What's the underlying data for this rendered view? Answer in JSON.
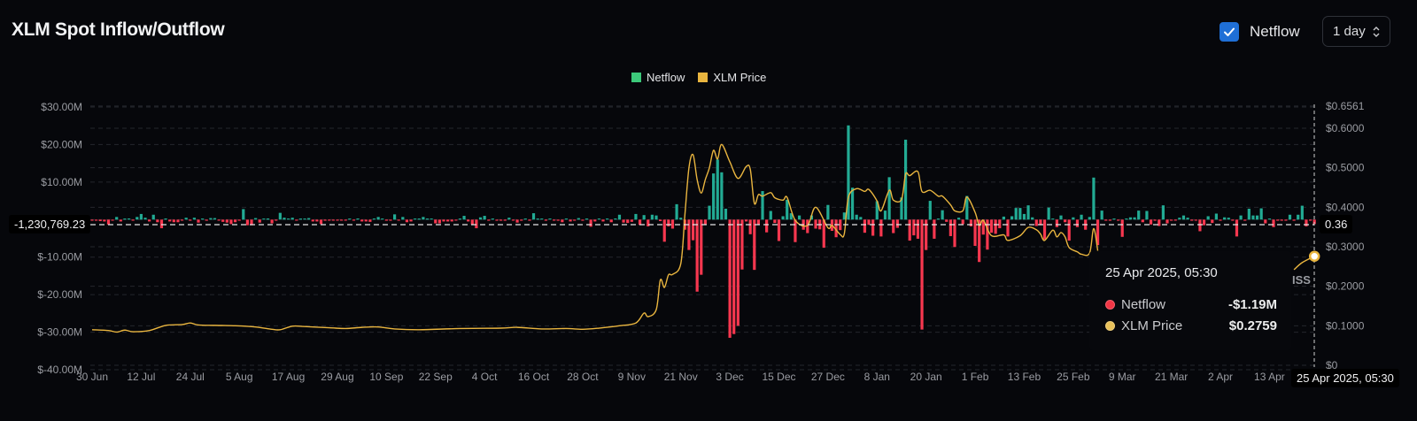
{
  "header": {
    "title": "XLM Spot Inflow/Outflow",
    "netflow_toggle_label": "Netflow",
    "netflow_checked": true,
    "interval_select": "1 day"
  },
  "legend": [
    {
      "label": "Netflow",
      "color": "#3cc97a"
    },
    {
      "label": "XLM Price",
      "color": "#e9b53f"
    }
  ],
  "crosshair": {
    "left_value": "-1,230,769.23",
    "right_value": "0.36",
    "x_label": "25 Apr 2025, 05:30"
  },
  "tooltip": {
    "date": "25 Apr 2025, 05:30",
    "rows": [
      {
        "name": "Netflow",
        "value": "-$1.19M",
        "color": "#f23645"
      },
      {
        "name": "XLM Price",
        "value": "$0.2759",
        "color": "#e9c15a"
      }
    ]
  },
  "partial_label": "ISS",
  "colors": {
    "inflow": "#22ab94",
    "outflow": "#f7374f",
    "price": "#e9b53f",
    "background": "#06070b"
  },
  "chart_data": {
    "type": "bar+line",
    "start_date": "2024-06-30",
    "end_date": "2025-04-25",
    "interval": "1 day",
    "left_axis": {
      "unit": "USD",
      "ylim": [
        -40,
        30
      ],
      "ticks": [
        "$30.00M",
        "$20.00M",
        "$10.00M",
        "$-10.00M",
        "$-20.00M",
        "$-30.00M",
        "$-40.00M"
      ],
      "tick_values": [
        30,
        20,
        10,
        -10,
        -20,
        -30,
        -40
      ]
    },
    "right_axis": {
      "ylim": [
        0,
        0.6561
      ],
      "ticks": [
        "$0.6561",
        "$0.6000",
        "$0.5000",
        "$0.4000",
        "$0.3000",
        "$0.2000",
        "$0.1000",
        "$0"
      ],
      "tick_values": [
        0.6561,
        0.6,
        0.5,
        0.4,
        0.3,
        0.2,
        0.1,
        0
      ]
    },
    "x_ticks": [
      "30 Jun",
      "12 Jul",
      "24 Jul",
      "5 Aug",
      "17 Aug",
      "29 Aug",
      "10 Sep",
      "22 Sep",
      "4 Oct",
      "16 Oct",
      "28 Oct",
      "9 Nov",
      "21 Nov",
      "3 Dec",
      "15 Dec",
      "27 Dec",
      "8 Jan",
      "20 Jan",
      "1 Feb",
      "13 Feb",
      "25 Feb",
      "9 Mar",
      "21 Mar",
      "2 Apr",
      "13 Apr"
    ],
    "x_tick_step_days": 12,
    "grid": true,
    "legend_position": "top-center",
    "series": [
      {
        "name": "Netflow",
        "type": "bar",
        "unit": "$M",
        "values": [
          -0.3,
          -0.3,
          -0.4,
          -0.5,
          -1.3,
          -0.2,
          0.7,
          -0.5,
          0.1,
          0.3,
          -0.2,
          0.7,
          1.5,
          0.5,
          -0.5,
          1.3,
          -0.7,
          -2.3,
          0.3,
          -0.5,
          -0.7,
          -0.7,
          -0.2,
          0.5,
          -0.3,
          0.5,
          -0.8,
          0.1,
          -0.3,
          0.4,
          0.4,
          -0.2,
          -0.6,
          -0.8,
          -1.2,
          -0.7,
          -0.3,
          2.8,
          -1.5,
          -1.5,
          0.4,
          -0.8,
          0.1,
          0.3,
          -1.0,
          -0.3,
          1.8,
          0.5,
          0.1,
          0.5,
          -0.2,
          0.2,
          0.2,
          0.4,
          -0.5,
          -0.5,
          -1.2,
          -0.3,
          -0.2,
          -0.2,
          -0.2,
          -0.2,
          -0.2,
          0.2,
          -0.2,
          0.3,
          -0.5,
          -0.5,
          -0.6,
          0.1,
          0.7,
          0.1,
          -0.3,
          -0.3,
          1.4,
          -0.2,
          0.7,
          -0.7,
          -0.5,
          0.2,
          0.2,
          0.7,
          0.2,
          0.2,
          -1.0,
          -1.0,
          -0.5,
          -0.5,
          -0.5,
          -0.2,
          0.1,
          1.0,
          -0.5,
          -1.3,
          -2.3,
          0.6,
          1.0,
          -0.3,
          0.1,
          -0.3,
          -0.3,
          -0.3,
          0.5,
          -0.2,
          -0.8,
          -0.3,
          0.2,
          -0.3,
          1.7,
          0.1,
          0.1,
          -0.3,
          0.1,
          -0.2,
          -0.3,
          -0.7,
          0.2,
          -0.5,
          -0.3,
          0.4,
          -0.3,
          0.2,
          -1.9,
          -0.5,
          0.1,
          -0.5,
          0.1,
          -0.7,
          0.3,
          1.3,
          -0.8,
          -0.9,
          -0.6,
          1.5,
          -1.4,
          1.2,
          -1.8,
          1.3,
          1.1,
          -0.4,
          -5.9,
          -1.8,
          -2.4,
          4.1,
          0.5,
          -2.7,
          -8.1,
          -5.5,
          -19.2,
          -14.7,
          -1.4,
          3.7,
          12.3,
          16,
          12.6,
          2.9,
          -31.5,
          -30.5,
          -28.3,
          -13.3,
          -0.5,
          -3.9,
          -13.4,
          -1.3,
          7.6,
          -3.4,
          2.3,
          -0.9,
          -5.7,
          0.9,
          5.3,
          1.7,
          -6,
          1.1,
          -2.7,
          -3.6,
          1.1,
          -2.4,
          -2.6,
          -7.5,
          3.9,
          -3,
          -4.7,
          -2.8,
          1.9,
          25.1,
          8.5,
          1.3,
          0.7,
          -3.5,
          -1.4,
          -4.3,
          4.9,
          -4.5,
          2.4,
          11.3,
          -3.6,
          -2.2,
          5.9,
          21.3,
          -5.6,
          -4.2,
          -5.1,
          -29.3,
          -8.1,
          5,
          -5.1,
          0.2,
          2.5,
          -0.6,
          -4.4,
          -7.3,
          0.5,
          -1.2,
          6.3,
          -1.8,
          -7,
          -11.3,
          -4,
          -8,
          -3.5,
          -3.8,
          -2.3,
          0.8,
          -4.5,
          0.9,
          3.1,
          3.1,
          1.5,
          3.8,
          0.6,
          -1.7,
          -1.5,
          -5.3,
          3.2,
          0.2,
          -2,
          1.1,
          -0.7,
          -5.6,
          0.6,
          -2,
          1.3,
          -2.7,
          0.7,
          11.2,
          -6.8,
          2.4,
          -0.3,
          -0.3,
          0.2,
          -0.3,
          -4.6,
          0.2,
          0.6,
          0.6,
          2.4,
          -0.7,
          2.3,
          -1.3,
          -0.3,
          -1.7,
          3.8,
          -1,
          -0.3,
          -0.2,
          0.5,
          1.1,
          0.5,
          -0.3,
          -0.2,
          -3.1,
          -1.5,
          0.9,
          -0.9,
          1.6,
          -0.3,
          0.6,
          0.5,
          -0.3,
          -4.5,
          1.1,
          -0.3,
          2.9,
          1.1,
          1.1,
          3,
          -1,
          0.2,
          -2,
          -0.3,
          -0.3,
          -0.3,
          1.3,
          -0.3,
          1.3,
          3.7,
          -1.8,
          -0.3,
          -1.19
        ]
      },
      {
        "name": "XLM Price",
        "type": "line",
        "unit": "USD",
        "segments": [
          [
            [
              "2024-06-30",
              0.09
            ],
            [
              "2024-07-04",
              0.088
            ],
            [
              "2024-07-06",
              0.084
            ],
            [
              "2024-07-08",
              0.089
            ],
            [
              "2024-07-10",
              0.085
            ],
            [
              "2024-07-14",
              0.088
            ],
            [
              "2024-07-18",
              0.101
            ],
            [
              "2024-07-22",
              0.103
            ],
            [
              "2024-07-24",
              0.107
            ],
            [
              "2024-07-26",
              0.102
            ],
            [
              "2024-07-30",
              0.101
            ],
            [
              "2024-08-04",
              0.1
            ],
            [
              "2024-08-09",
              0.097
            ],
            [
              "2024-08-13",
              0.091
            ],
            [
              "2024-08-15",
              0.09
            ],
            [
              "2024-08-18",
              0.099
            ],
            [
              "2024-08-21",
              0.098
            ],
            [
              "2024-08-27",
              0.095
            ],
            [
              "2024-08-31",
              0.093
            ],
            [
              "2024-09-04",
              0.096
            ],
            [
              "2024-09-08",
              0.097
            ],
            [
              "2024-09-12",
              0.092
            ],
            [
              "2024-09-18",
              0.09
            ],
            [
              "2024-09-28",
              0.093
            ],
            [
              "2024-10-08",
              0.094
            ],
            [
              "2024-10-12",
              0.096
            ],
            [
              "2024-10-18",
              0.092
            ],
            [
              "2024-10-24",
              0.093
            ],
            [
              "2024-10-28",
              0.091
            ],
            [
              "2024-11-01",
              0.094
            ],
            [
              "2024-11-06",
              0.1
            ],
            [
              "2024-11-10",
              0.107
            ],
            [
              "2024-11-12",
              0.132
            ],
            [
              "2024-11-13",
              0.123
            ],
            [
              "2024-11-15",
              0.141
            ],
            [
              "2024-11-16",
              0.216
            ],
            [
              "2024-11-17",
              0.197
            ],
            [
              "2024-11-18",
              0.229
            ],
            [
              "2024-11-19",
              0.23
            ],
            [
              "2024-11-21",
              0.257
            ],
            [
              "2024-11-22",
              0.38
            ],
            [
              "2024-11-23",
              0.5
            ],
            [
              "2024-11-24",
              0.533
            ],
            [
              "2024-11-25",
              0.47
            ],
            [
              "2024-11-26",
              0.436
            ],
            [
              "2024-11-27",
              0.47
            ],
            [
              "2024-11-28",
              0.5
            ],
            [
              "2024-11-29",
              0.544
            ],
            [
              "2024-11-30",
              0.522
            ],
            [
              "2024-12-01",
              0.559
            ],
            [
              "2024-12-03",
              0.515
            ],
            [
              "2024-12-05",
              0.473
            ],
            [
              "2024-12-07",
              0.503
            ],
            [
              "2024-12-08",
              0.496
            ],
            [
              "2024-12-09",
              0.41
            ],
            [
              "2024-12-10",
              0.432
            ],
            [
              "2024-12-11",
              0.428
            ],
            [
              "2024-12-13",
              0.437
            ],
            [
              "2024-12-14",
              0.424
            ],
            [
              "2024-12-16",
              0.418
            ],
            [
              "2024-12-17",
              0.425
            ],
            [
              "2024-12-19",
              0.367
            ],
            [
              "2024-12-22",
              0.354
            ],
            [
              "2024-12-24",
              0.4
            ],
            [
              "2024-12-27",
              0.348
            ],
            [
              "2024-12-28",
              0.354
            ],
            [
              "2024-12-30",
              0.331
            ],
            [
              "2024-12-31",
              0.333
            ],
            [
              "2025-01-01",
              0.425
            ],
            [
              "2025-01-03",
              0.447
            ],
            [
              "2025-01-05",
              0.44
            ],
            [
              "2025-01-06",
              0.445
            ],
            [
              "2025-01-08",
              0.416
            ],
            [
              "2025-01-09",
              0.391
            ],
            [
              "2025-01-11",
              0.443
            ],
            [
              "2025-01-12",
              0.418
            ],
            [
              "2025-01-14",
              0.42
            ],
            [
              "2025-01-15",
              0.484
            ],
            [
              "2025-01-16",
              0.48
            ],
            [
              "2025-01-18",
              0.49
            ],
            [
              "2025-01-19",
              0.44
            ],
            [
              "2025-01-21",
              0.443
            ],
            [
              "2025-01-23",
              0.428
            ],
            [
              "2025-01-24",
              0.428
            ],
            [
              "2025-01-26",
              0.406
            ],
            [
              "2025-01-27",
              0.391
            ],
            [
              "2025-01-29",
              0.391
            ],
            [
              "2025-01-30",
              0.426
            ],
            [
              "2025-02-01",
              0.387
            ],
            [
              "2025-02-02",
              0.354
            ],
            [
              "2025-02-03",
              0.367
            ],
            [
              "2025-02-05",
              0.328
            ],
            [
              "2025-02-08",
              0.33
            ],
            [
              "2025-02-09",
              0.316
            ],
            [
              "2025-02-12",
              0.328
            ],
            [
              "2025-02-14",
              0.349
            ],
            [
              "2025-02-16",
              0.343
            ],
            [
              "2025-02-17",
              0.332
            ],
            [
              "2025-02-18",
              0.316
            ],
            [
              "2025-02-20",
              0.342
            ],
            [
              "2025-02-21",
              0.325
            ],
            [
              "2025-02-22",
              0.336
            ],
            [
              "2025-02-23",
              0.325
            ],
            [
              "2025-02-24",
              0.298
            ],
            [
              "2025-02-26",
              0.287
            ],
            [
              "2025-02-27",
              0.281
            ],
            [
              "2025-03-01",
              0.284
            ],
            [
              "2025-03-02",
              0.346
            ],
            [
              "2025-03-03",
              0.29
            ]
          ],
          [
            [
              "2025-04-20",
              0.242
            ],
            [
              "2025-04-22",
              0.26
            ],
            [
              "2025-04-25",
              0.2759
            ]
          ]
        ]
      }
    ]
  }
}
